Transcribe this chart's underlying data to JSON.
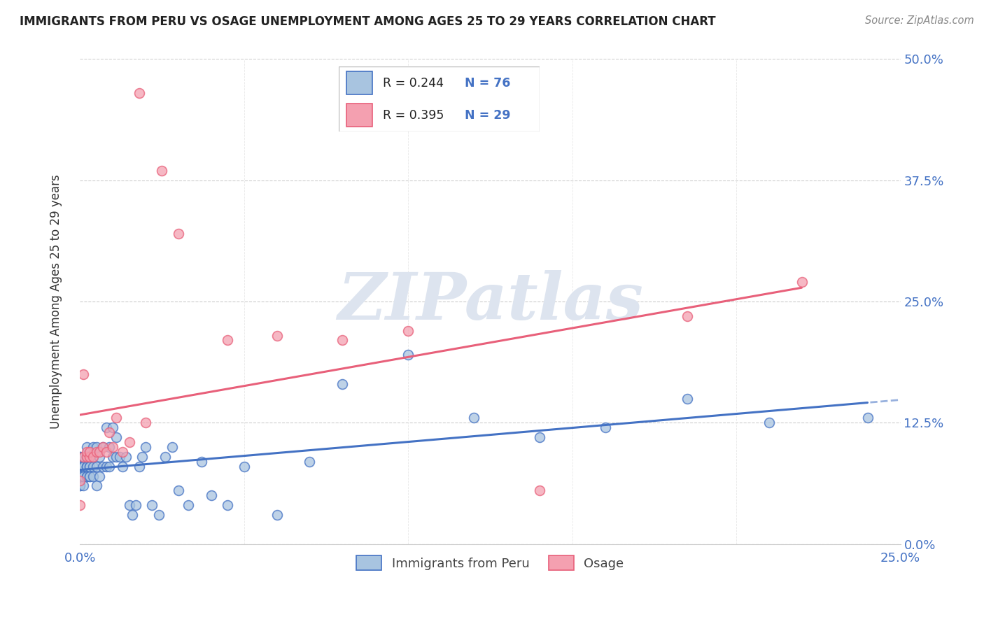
{
  "title": "IMMIGRANTS FROM PERU VS OSAGE UNEMPLOYMENT AMONG AGES 25 TO 29 YEARS CORRELATION CHART",
  "source": "Source: ZipAtlas.com",
  "ylabel": "Unemployment Among Ages 25 to 29 years",
  "xlim": [
    0.0,
    0.25
  ],
  "ylim": [
    0.0,
    0.5
  ],
  "legend_label1": "Immigrants from Peru",
  "legend_label2": "Osage",
  "legend_R1": "R = 0.244",
  "legend_N1": "N = 76",
  "legend_R2": "R = 0.395",
  "legend_N2": "N = 29",
  "color_peru": "#a8c4e0",
  "color_osage": "#f4a0b0",
  "line_color_peru": "#4472c4",
  "line_color_osage": "#e8607a",
  "watermark_color": "#dde4ef",
  "peru_x": [
    0.0,
    0.0,
    0.0,
    0.0,
    0.0,
    0.0,
    0.0,
    0.0,
    0.001,
    0.001,
    0.001,
    0.001,
    0.001,
    0.001,
    0.001,
    0.002,
    0.002,
    0.002,
    0.002,
    0.002,
    0.002,
    0.002,
    0.002,
    0.003,
    0.003,
    0.003,
    0.003,
    0.003,
    0.004,
    0.004,
    0.004,
    0.004,
    0.005,
    0.005,
    0.005,
    0.006,
    0.006,
    0.007,
    0.007,
    0.008,
    0.008,
    0.009,
    0.009,
    0.01,
    0.01,
    0.011,
    0.011,
    0.012,
    0.013,
    0.014,
    0.015,
    0.016,
    0.017,
    0.018,
    0.019,
    0.02,
    0.022,
    0.024,
    0.026,
    0.028,
    0.03,
    0.033,
    0.037,
    0.04,
    0.045,
    0.05,
    0.06,
    0.07,
    0.08,
    0.1,
    0.12,
    0.14,
    0.16,
    0.185,
    0.21,
    0.24
  ],
  "peru_y": [
    0.08,
    0.09,
    0.07,
    0.06,
    0.08,
    0.09,
    0.07,
    0.06,
    0.08,
    0.09,
    0.07,
    0.08,
    0.09,
    0.06,
    0.07,
    0.08,
    0.07,
    0.09,
    0.08,
    0.07,
    0.09,
    0.08,
    0.1,
    0.07,
    0.08,
    0.09,
    0.07,
    0.08,
    0.07,
    0.08,
    0.09,
    0.1,
    0.06,
    0.08,
    0.1,
    0.07,
    0.09,
    0.08,
    0.1,
    0.08,
    0.12,
    0.08,
    0.1,
    0.09,
    0.12,
    0.09,
    0.11,
    0.09,
    0.08,
    0.09,
    0.04,
    0.03,
    0.04,
    0.08,
    0.09,
    0.1,
    0.04,
    0.03,
    0.09,
    0.1,
    0.055,
    0.04,
    0.085,
    0.05,
    0.04,
    0.08,
    0.03,
    0.085,
    0.165,
    0.195,
    0.13,
    0.11,
    0.12,
    0.15,
    0.125,
    0.13
  ],
  "osage_x": [
    0.0,
    0.0,
    0.001,
    0.001,
    0.002,
    0.002,
    0.003,
    0.003,
    0.004,
    0.005,
    0.006,
    0.007,
    0.008,
    0.009,
    0.01,
    0.011,
    0.013,
    0.015,
    0.018,
    0.02,
    0.025,
    0.03,
    0.045,
    0.06,
    0.08,
    0.1,
    0.14,
    0.185,
    0.22
  ],
  "osage_y": [
    0.065,
    0.04,
    0.09,
    0.175,
    0.09,
    0.095,
    0.09,
    0.095,
    0.09,
    0.095,
    0.095,
    0.1,
    0.095,
    0.115,
    0.1,
    0.13,
    0.095,
    0.105,
    0.465,
    0.125,
    0.385,
    0.32,
    0.21,
    0.215,
    0.21,
    0.22,
    0.055,
    0.235,
    0.27
  ]
}
